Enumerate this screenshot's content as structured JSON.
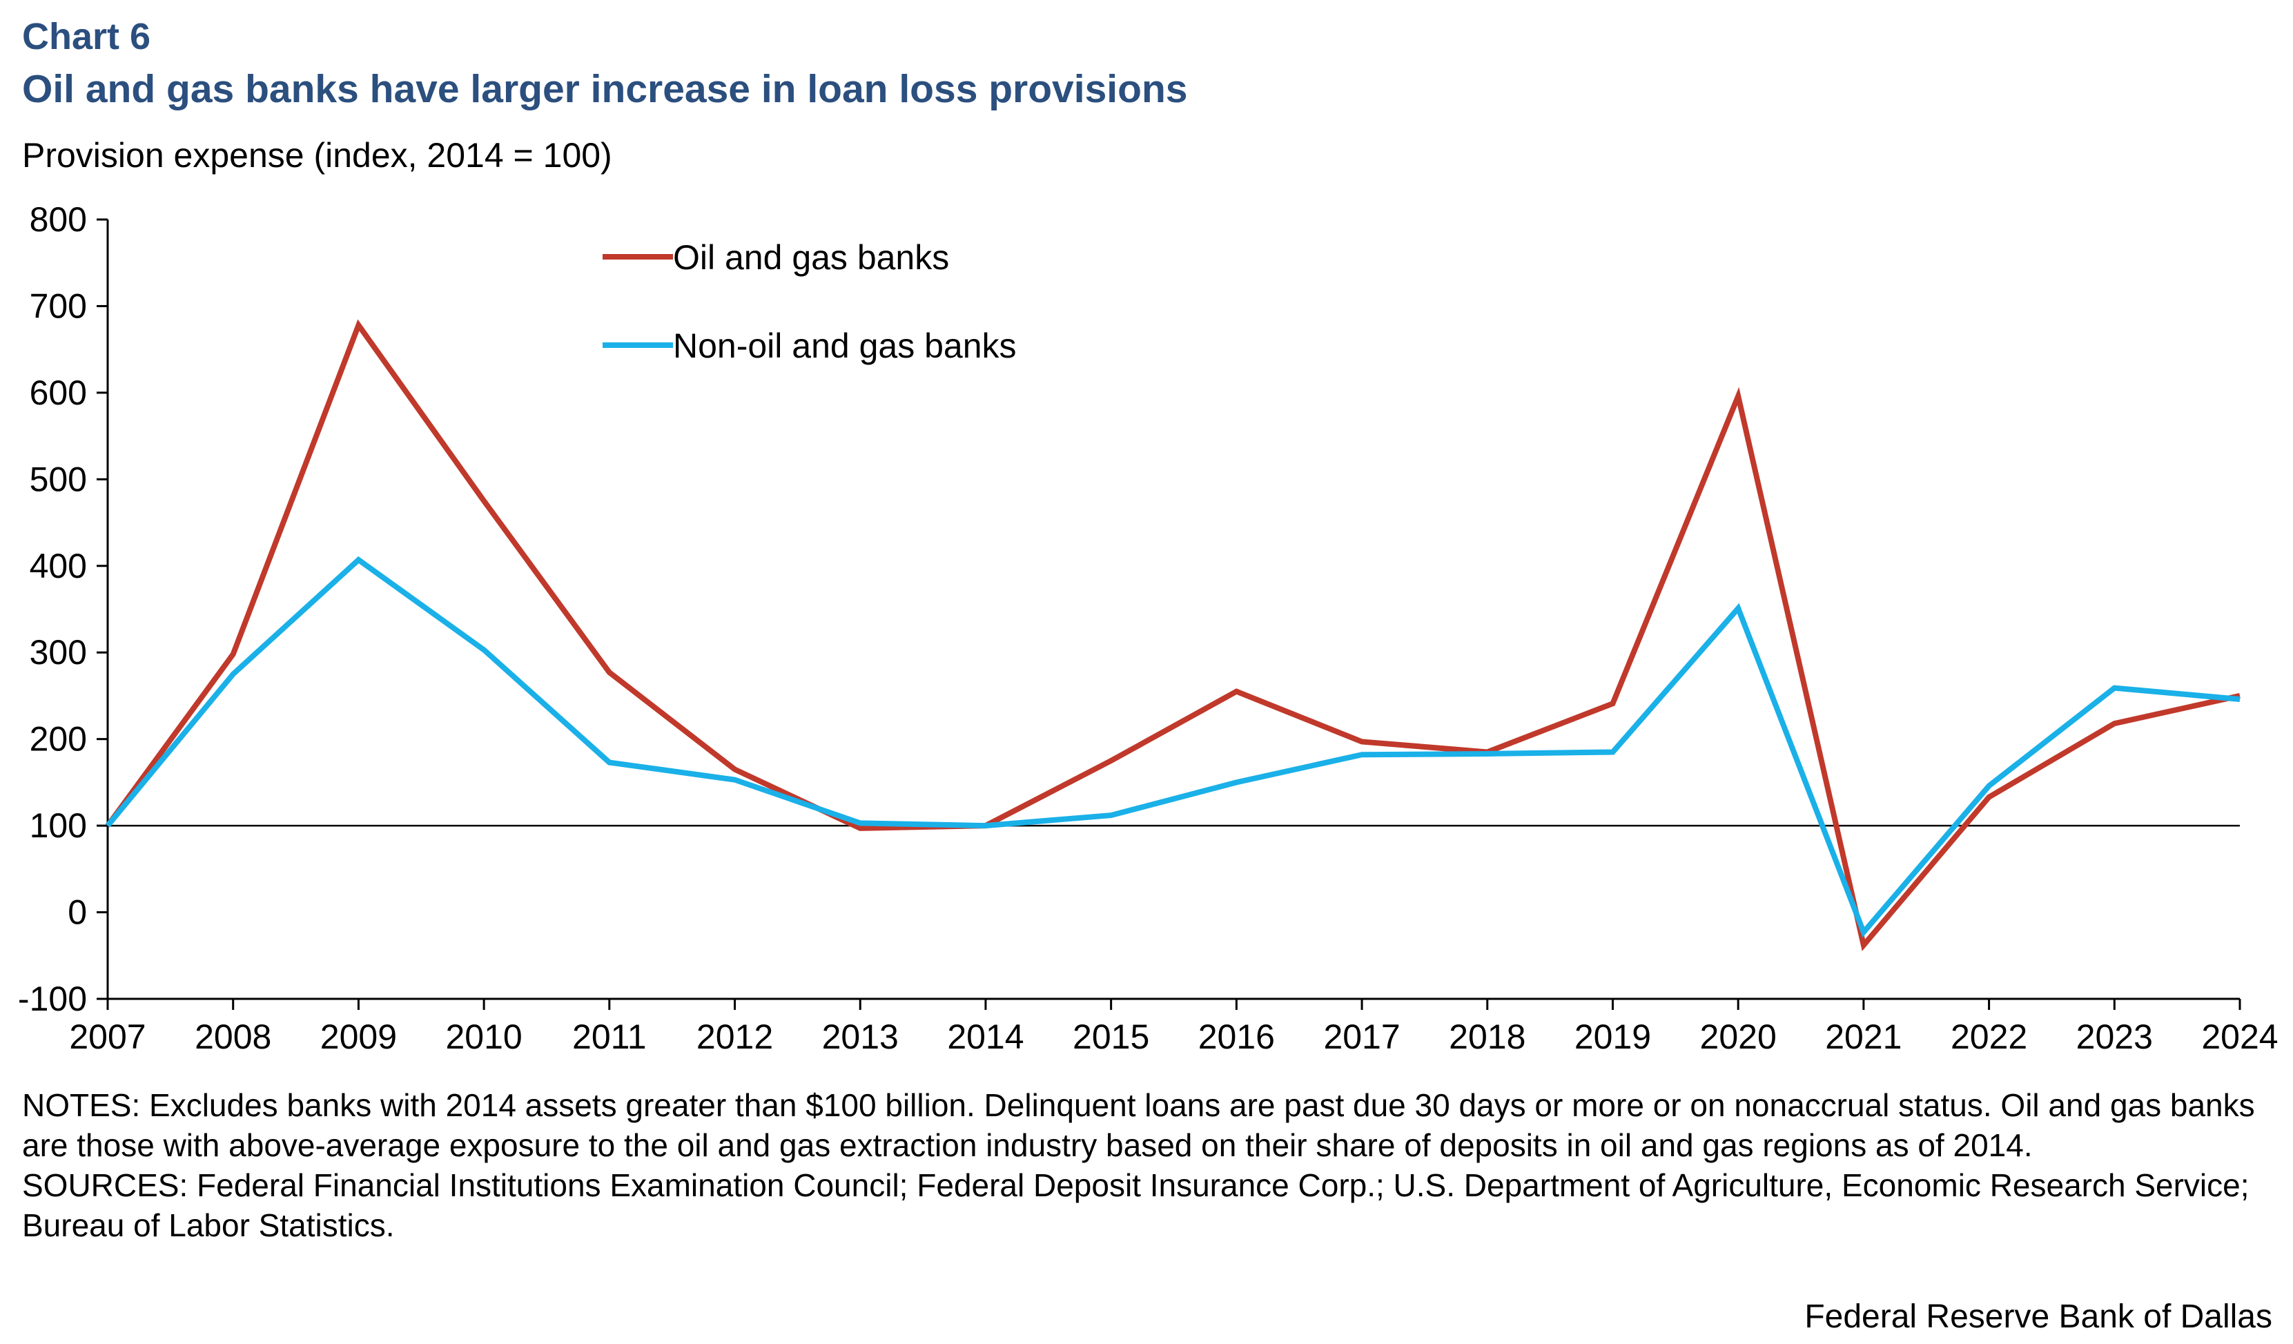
{
  "header": {
    "chart_label": "Chart 6",
    "title": "Oil and gas banks have larger increase in loan loss provisions",
    "ylabel": "Provision expense (index, 2014 = 100)"
  },
  "notes": {
    "notes_text": "NOTES: Excludes banks with 2014 assets greater than $100 billion. Delinquent loans are past due 30 days or more or on nonaccrual status. Oil and gas banks are those with above-average exposure to the oil and gas extraction industry based on their share of deposits in oil and gas regions as of 2014.",
    "sources_text": "SOURCES: Federal Financial Institutions Examination Council; Federal Deposit Insurance Corp.; U.S. Department of Agriculture, Economic Research Service; Bureau of Labor Statistics."
  },
  "footer": {
    "credit": "Federal Reserve Bank of Dallas"
  },
  "colors": {
    "oil": "#c0392b",
    "nonoil": "#1ab0e8",
    "title": "#2b4f7e"
  },
  "chart_data": {
    "type": "line",
    "title": "Oil and gas banks have larger increase in loan loss provisions",
    "xlabel": "",
    "ylabel": "Provision expense (index, 2014 = 100)",
    "x": [
      "2007",
      "2008",
      "2009",
      "2010",
      "2011",
      "2012",
      "2013",
      "2014",
      "2015",
      "2016",
      "2017",
      "2018",
      "2019",
      "2020",
      "2021",
      "2022",
      "2023",
      "2024"
    ],
    "ylim": [
      -100,
      800
    ],
    "yticks": [
      "-100",
      "0",
      "100",
      "200",
      "300",
      "400",
      "500",
      "600",
      "700",
      "800"
    ],
    "reference_line": 100,
    "grid": false,
    "legend_position": "top-center",
    "series": [
      {
        "name": "Oil and gas banks",
        "color": "#c0392b",
        "values": [
          100,
          298,
          678,
          475,
          277,
          165,
          97,
          100,
          175,
          255,
          197,
          185,
          241,
          596,
          -38,
          133,
          218,
          250
        ]
      },
      {
        "name": "Non-oil and gas banks",
        "color": "#1ab0e8",
        "values": [
          100,
          275,
          407,
          303,
          173,
          153,
          103,
          100,
          112,
          150,
          182,
          183,
          185,
          351,
          -23,
          146,
          259,
          246
        ]
      }
    ]
  }
}
